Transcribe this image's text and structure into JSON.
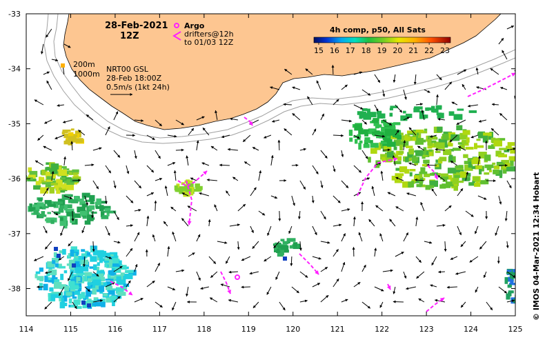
{
  "map": {
    "date_title": "28-Feb-2021",
    "time_title": "12Z",
    "argo_label": "Argo",
    "drifters_label_1": "drifters@12h",
    "drifters_label_2": "to 01/03 12Z",
    "isobath_200": "200m",
    "isobath_1000": "1000m",
    "current_source": "NRT00 GSL",
    "current_time": "28-Feb 18:00Z",
    "vector_scale": "0.5m/s (1kt 24h)",
    "credit": "© IMOS 04-Mar-2021 12:34 Hobart",
    "colorbar": {
      "title": "4h comp, p50, All Sats",
      "ticks": [
        "15",
        "16",
        "17",
        "18",
        "19",
        "20",
        "21",
        "22",
        "23"
      ]
    },
    "lon_ticks": [
      "114",
      "115",
      "116",
      "117",
      "118",
      "119",
      "120",
      "121",
      "122",
      "123",
      "124",
      "125"
    ],
    "lat_ticks": [
      "-33",
      "-34",
      "-35",
      "-36",
      "-37",
      "-38"
    ],
    "colors": {
      "land": "#fdc691",
      "drifter": "#ff20ff",
      "argo": "#ff20ff",
      "isobath": "#a0a0a0"
    }
  }
}
